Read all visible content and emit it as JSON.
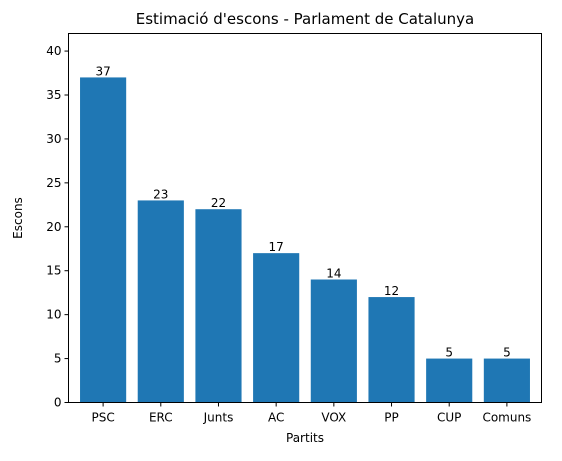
{
  "chart_data": {
    "type": "bar",
    "title": "Estimació d'escons - Parlament de Catalunya",
    "xlabel": "Partits",
    "ylabel": "Escons",
    "categories": [
      "PSC",
      "ERC",
      "Junts",
      "AC",
      "VOX",
      "PP",
      "CUP",
      "Comuns"
    ],
    "values": [
      37,
      23,
      22,
      17,
      14,
      12,
      5,
      5
    ],
    "ylim": [
      0,
      42
    ],
    "yticks": [
      0,
      5,
      10,
      15,
      20,
      25,
      30,
      35,
      40
    ],
    "bar_color": "#1f77b4",
    "grid": false,
    "legend": "none"
  }
}
